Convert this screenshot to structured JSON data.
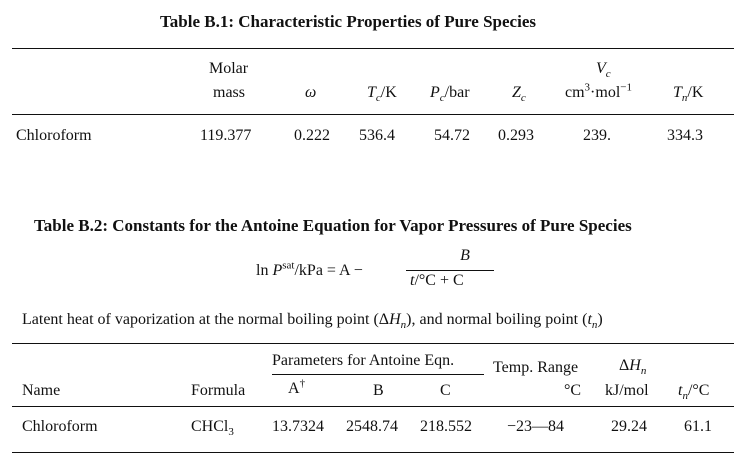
{
  "table1": {
    "title": "Table B.1: Characteristic Properties of Pure Species",
    "headers": {
      "molar_line1": "Molar",
      "molar_line2": "mass",
      "omega": "ω",
      "tc_sym": "T",
      "tc_sub": "c",
      "tc_unit": "/K",
      "pc_sym": "P",
      "pc_sub": "c",
      "pc_unit": "/bar",
      "zc_sym": "Z",
      "zc_sub": "c",
      "vc_sym": "V",
      "vc_sub": "c",
      "vc_unit_pre": "cm",
      "vc_unit_sup1": "3",
      "vc_unit_mid": "·mol",
      "vc_unit_sup2": "−1",
      "tn_sym": "T",
      "tn_sub": "n",
      "tn_unit": "/K"
    },
    "row": {
      "name": "Chloroform",
      "molar_mass": "119.377",
      "omega": "0.222",
      "tc": "536.4",
      "pc": "54.72",
      "zc": "0.293",
      "vc": "239.",
      "tn": "334.3"
    }
  },
  "table2": {
    "title": "Table B.2: Constants for the Antoine Equation for Vapor Pressures of Pure Species",
    "equation": {
      "lhs_ln": "ln ",
      "lhs_p": "P",
      "lhs_sup": "sat",
      "lhs_unit": "/kPa = A −",
      "numerator": "B",
      "den_t": "t",
      "den_rest": "/°C + C"
    },
    "latent": {
      "text1": "Latent heat of vaporization at the normal boiling point (Δ",
      "h": "H",
      "h_sub": "n",
      "text2": "), and normal boiling point (",
      "t": "t",
      "t_sub": "n",
      "text3": ")"
    },
    "headers": {
      "params_group": "Parameters for Antoine Eqn.",
      "temp_range": "Temp. Range",
      "dh_delta": "Δ",
      "dh_h": "H",
      "dh_sub": "n",
      "name": "Name",
      "formula": "Formula",
      "a": "A",
      "a_sup": "†",
      "b": "B",
      "c": "C",
      "temp_unit": "°C",
      "dh_unit": "kJ/mol",
      "tn_t": "t",
      "tn_sub": "n",
      "tn_unit": "/°C"
    },
    "row": {
      "name": "Chloroform",
      "formula_pre": "CHCl",
      "formula_sub": "3",
      "a": "13.7324",
      "b": "2548.74",
      "c": "218.552",
      "temp_range": "−23—84",
      "dh": "29.24",
      "tn": "61.1"
    }
  }
}
